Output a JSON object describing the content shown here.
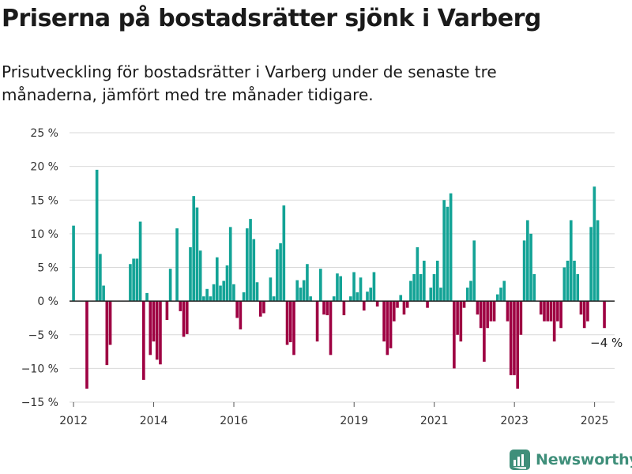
{
  "header": {
    "title": "Priserna på bostadsrätter sjönk i Varberg",
    "subtitle": "Prisutveckling för bostadsrätter i Varberg under de senaste tre månaderna, jämfört med tre månader tidigare."
  },
  "brand": {
    "name": "Newsworthy",
    "icon": "newsworthy-logo-icon",
    "color": "#3f8f7a"
  },
  "chart_data": {
    "type": "bar",
    "title": "",
    "xlabel": "",
    "ylabel": "",
    "unit": "%",
    "ylim": [
      -15,
      25
    ],
    "yticks": [
      -15,
      -10,
      -5,
      0,
      5,
      10,
      15,
      20,
      25
    ],
    "ytick_labels": [
      "−15 %",
      "−10 %",
      "−5 %",
      "0 %",
      "5 %",
      "10 %",
      "15 %",
      "20 %",
      "25 %"
    ],
    "xlim": [
      2011.9,
      2025.5
    ],
    "xticks": [
      2012,
      2014,
      2016,
      2019,
      2021,
      2023,
      2025
    ],
    "xtick_labels": [
      "2012",
      "2014",
      "2016",
      "2019",
      "2021",
      "2023",
      "2025"
    ],
    "grid": true,
    "positive_color": "#13a396",
    "negative_color": "#9e0142",
    "x_start": 2012.0,
    "x_step": 0.0833,
    "values": [
      11.2,
      0,
      0,
      0,
      -13,
      0,
      0,
      19.5,
      7,
      2.3,
      -9.5,
      -6.5,
      0,
      0,
      0,
      0,
      0,
      5.5,
      6.3,
      6.3,
      11.8,
      -11.7,
      1.2,
      -8,
      -6,
      -8.7,
      -9.4,
      0,
      -2.8,
      4.8,
      0,
      10.8,
      -1.5,
      -5.3,
      -4.9,
      8,
      15.6,
      13.9,
      7.5,
      0.7,
      1.8,
      0.7,
      2.5,
      6.5,
      2.3,
      3,
      5.3,
      11,
      2.5,
      -2.5,
      -4.2,
      1.3,
      10.8,
      12.2,
      9.2,
      2.8,
      -2.3,
      -1.8,
      0,
      3.5,
      0.7,
      7.7,
      8.6,
      14.2,
      -6.5,
      -6.1,
      -8,
      3.1,
      2,
      3.1,
      5.5,
      0.7,
      0,
      -6,
      4.8,
      -2,
      -2.1,
      -8,
      0.7,
      4.1,
      3.7,
      -2.1,
      0,
      0.7,
      4.3,
      1.3,
      3.5,
      -1.4,
      1.4,
      2,
      4.3,
      -0.8,
      0,
      -6,
      -8,
      -7,
      -3,
      -1,
      0.9,
      -2,
      -1,
      3,
      4,
      8,
      4,
      6,
      -1,
      2,
      4,
      6,
      2,
      15,
      14,
      16,
      -10,
      -5,
      -6,
      -1,
      2,
      3,
      9,
      -2,
      -4,
      -9,
      -4,
      -3,
      -3,
      1,
      2,
      3,
      -3,
      -11,
      -11,
      -13,
      -5,
      9,
      12,
      10,
      4,
      0,
      -2,
      -3,
      -3,
      -3,
      -6,
      -3,
      -4,
      5,
      6,
      12,
      6,
      4,
      -2,
      -4,
      -3,
      11,
      17,
      12,
      0,
      -4
    ],
    "annotations": [
      {
        "text": "−4 %",
        "x": 2025.1,
        "y": -4
      }
    ]
  }
}
